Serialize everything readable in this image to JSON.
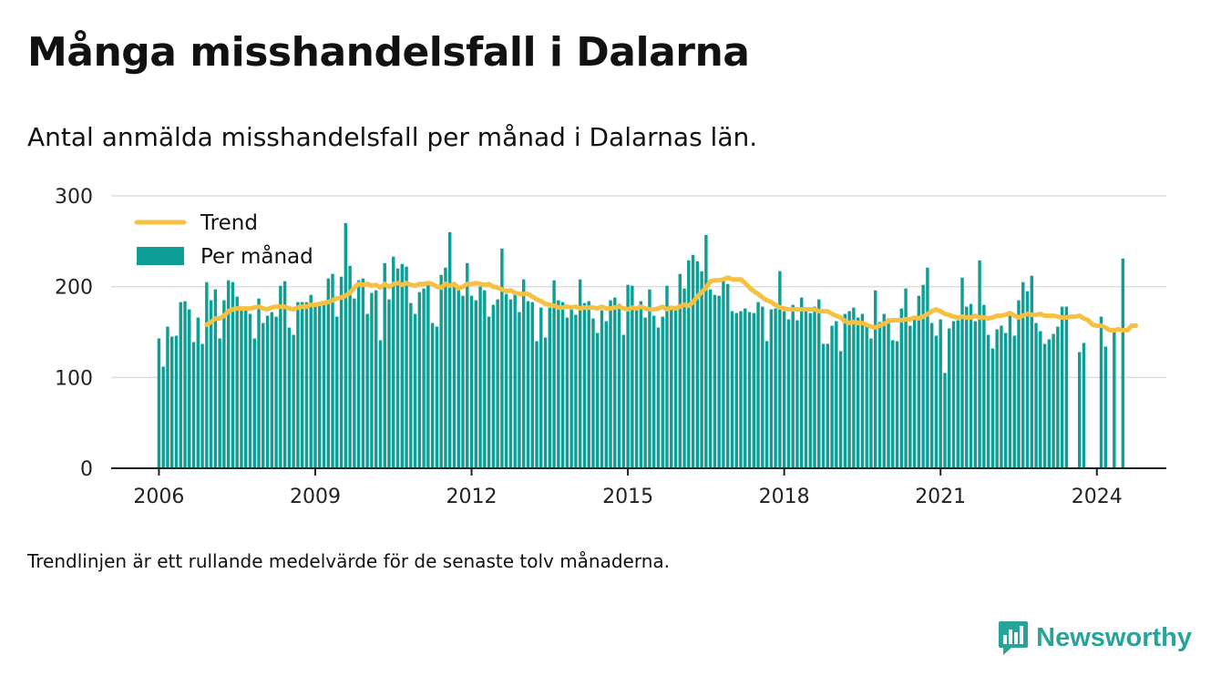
{
  "title": "Många misshandelsfall i Dalarna",
  "subtitle": "Antal anmälda misshandelsfall per månad i Dalarnas län.",
  "note": "Trendlinjen är ett rullande medelvärde för de senaste tolv månaderna.",
  "brand": {
    "name": "Newsworthy",
    "icon": "newsworthy-logo-icon",
    "color": "#27a39a"
  },
  "colors": {
    "bars": "#0e9e96",
    "trend": "#f6c042",
    "grid": "#dddddd",
    "axis": "#222222"
  },
  "chart_data": {
    "type": "bar",
    "title": "Många misshandelsfall i Dalarna",
    "subtitle": "Antal anmälda misshandelsfall per månad i Dalarnas län.",
    "x_start": "2006-01",
    "x_ticks": [
      "2006",
      "2009",
      "2012",
      "2015",
      "2018",
      "2021",
      "2024"
    ],
    "xlim": [
      "2005-02",
      "2025-05"
    ],
    "y_ticks": [
      0,
      100,
      200,
      300
    ],
    "ylim": [
      0,
      300
    ],
    "grid": true,
    "legend": {
      "placement": "top-left",
      "items": [
        "Trend",
        "Per månad"
      ]
    },
    "series": [
      {
        "name": "Per månad",
        "kind": "bar",
        "values": [
          143,
          112,
          156,
          145,
          146,
          183,
          184,
          175,
          139,
          166,
          137,
          205,
          185,
          197,
          143,
          185,
          207,
          205,
          189,
          178,
          178,
          170,
          143,
          187,
          160,
          168,
          172,
          167,
          201,
          206,
          155,
          147,
          183,
          183,
          183,
          191,
          180,
          182,
          180,
          209,
          214,
          167,
          211,
          270,
          223,
          187,
          207,
          209,
          170,
          193,
          196,
          141,
          226,
          186,
          233,
          220,
          225,
          222,
          182,
          170,
          194,
          198,
          205,
          160,
          156,
          213,
          221,
          260,
          200,
          199,
          190,
          226,
          190,
          185,
          200,
          196,
          167,
          180,
          186,
          242,
          192,
          186,
          191,
          172,
          208,
          184,
          183,
          140,
          177,
          144,
          177,
          207,
          185,
          183,
          166,
          179,
          169,
          208,
          182,
          184,
          165,
          149,
          174,
          162,
          185,
          188,
          181,
          147,
          202,
          201,
          175,
          184,
          166,
          197,
          168,
          155,
          167,
          201,
          175,
          176,
          214,
          198,
          229,
          235,
          228,
          217,
          257,
          197,
          191,
          190,
          207,
          203,
          173,
          171,
          173,
          176,
          172,
          171,
          183,
          178,
          140,
          175,
          176,
          217,
          173,
          164,
          180,
          163,
          188,
          173,
          171,
          178,
          186,
          137,
          137,
          157,
          162,
          129,
          170,
          173,
          177,
          166,
          170,
          160,
          143,
          196,
          161,
          170,
          165,
          141,
          140,
          176,
          198,
          157,
          165,
          190,
          202,
          221,
          160,
          146,
          164,
          105,
          154,
          162,
          163,
          210,
          178,
          181,
          162,
          229,
          180,
          147,
          132,
          153,
          157,
          149,
          172,
          146,
          185,
          205,
          195,
          212,
          160,
          151,
          137,
          142,
          148,
          156,
          178,
          178,
          null,
          null,
          128,
          138,
          null,
          null,
          null,
          167,
          134,
          null,
          154,
          null,
          231
        ]
      },
      {
        "name": "Trend",
        "kind": "line",
        "values": [
          null,
          null,
          null,
          null,
          null,
          null,
          null,
          null,
          null,
          null,
          null,
          158,
          161,
          165,
          165,
          168,
          173,
          175,
          176,
          176,
          176,
          176,
          177,
          178,
          176,
          175,
          177,
          178,
          178,
          178,
          176,
          175,
          177,
          178,
          178,
          180,
          180,
          181,
          182,
          183,
          185,
          187,
          188,
          190,
          193,
          199,
          203,
          202,
          203,
          201,
          202,
          199,
          203,
          200,
          203,
          204,
          202,
          204,
          202,
          201,
          203,
          203,
          204,
          203,
          200,
          199,
          203,
          201,
          203,
          198,
          200,
          203,
          203,
          204,
          203,
          202,
          203,
          200,
          199,
          197,
          195,
          196,
          193,
          192,
          192,
          192,
          189,
          186,
          184,
          181,
          180,
          179,
          177,
          177,
          178,
          177,
          178,
          176,
          177,
          177,
          177,
          176,
          178,
          176,
          176,
          177,
          178,
          176,
          175,
          177,
          176,
          178,
          176,
          175,
          175,
          176,
          178,
          175,
          177,
          176,
          178,
          180,
          179,
          183,
          189,
          194,
          199,
          206,
          207,
          207,
          208,
          210,
          208,
          208,
          208,
          204,
          199,
          195,
          192,
          188,
          185,
          183,
          180,
          177,
          176,
          175,
          175,
          175,
          175,
          175,
          175,
          175,
          173,
          173,
          173,
          170,
          168,
          166,
          162,
          160,
          161,
          160,
          160,
          158,
          156,
          155,
          157,
          159,
          162,
          163,
          163,
          163,
          164,
          164,
          166,
          165,
          167,
          170,
          173,
          175,
          173,
          170,
          169,
          167,
          166,
          167,
          166,
          166,
          168,
          166,
          166,
          165,
          166,
          168,
          168,
          169,
          171,
          168,
          166,
          168,
          170,
          169,
          169,
          170,
          168,
          168,
          168,
          167,
          166,
          166,
          167,
          167,
          168,
          165,
          163,
          158,
          157,
          157,
          155,
          152,
          152,
          153,
          152,
          152,
          157,
          157
        ]
      }
    ]
  }
}
